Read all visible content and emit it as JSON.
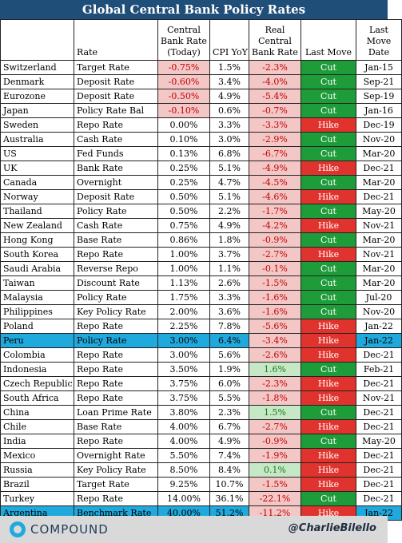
{
  "title": "Global Central Bank Policy Rates",
  "headers": {
    "country": "",
    "rate": "Rate",
    "central": "Central Bank Rate (Today)",
    "cpi": "CPI YoY",
    "real": "Real Central Bank Rate",
    "last": "Last Move",
    "date": "Last Move Date"
  },
  "rows": [
    {
      "country": "Switzerland",
      "rate": "Target Rate",
      "cb": "-0.75%",
      "cpi": "1.5%",
      "real": "-2.3%",
      "move": "Cut",
      "date": "Jan-15"
    },
    {
      "country": "Denmark",
      "rate": "Deposit Rate",
      "cb": "-0.60%",
      "cpi": "3.4%",
      "real": "-4.0%",
      "move": "Cut",
      "date": "Sep-21"
    },
    {
      "country": "Eurozone",
      "rate": "Deposit Rate",
      "cb": "-0.50%",
      "cpi": "4.9%",
      "real": "-5.4%",
      "move": "Cut",
      "date": "Sep-19"
    },
    {
      "country": "Japan",
      "rate": "Policy Rate Bal",
      "cb": "-0.10%",
      "cpi": "0.6%",
      "real": "-0.7%",
      "move": "Cut",
      "date": "Jan-16"
    },
    {
      "country": "Sweden",
      "rate": "Repo Rate",
      "cb": "0.00%",
      "cpi": "3.3%",
      "real": "-3.3%",
      "move": "Hike",
      "date": "Dec-19"
    },
    {
      "country": "Australia",
      "rate": "Cash Rate",
      "cb": "0.10%",
      "cpi": "3.0%",
      "real": "-2.9%",
      "move": "Cut",
      "date": "Nov-20"
    },
    {
      "country": "US",
      "rate": "Fed Funds",
      "cb": "0.13%",
      "cpi": "6.8%",
      "real": "-6.7%",
      "move": "Cut",
      "date": "Mar-20"
    },
    {
      "country": "UK",
      "rate": "Bank Rate",
      "cb": "0.25%",
      "cpi": "5.1%",
      "real": "-4.9%",
      "move": "Hike",
      "date": "Dec-21"
    },
    {
      "country": "Canada",
      "rate": "Overnight",
      "cb": "0.25%",
      "cpi": "4.7%",
      "real": "-4.5%",
      "move": "Cut",
      "date": "Mar-20"
    },
    {
      "country": "Norway",
      "rate": "Deposit Rate",
      "cb": "0.50%",
      "cpi": "5.1%",
      "real": "-4.6%",
      "move": "Hike",
      "date": "Dec-21"
    },
    {
      "country": "Thailand",
      "rate": "Policy Rate",
      "cb": "0.50%",
      "cpi": "2.2%",
      "real": "-1.7%",
      "move": "Cut",
      "date": "May-20"
    },
    {
      "country": "New Zealand",
      "rate": "Cash Rate",
      "cb": "0.75%",
      "cpi": "4.9%",
      "real": "-4.2%",
      "move": "Hike",
      "date": "Nov-21"
    },
    {
      "country": "Hong Kong",
      "rate": "Base Rate",
      "cb": "0.86%",
      "cpi": "1.8%",
      "real": "-0.9%",
      "move": "Cut",
      "date": "Mar-20"
    },
    {
      "country": "South Korea",
      "rate": "Repo Rate",
      "cb": "1.00%",
      "cpi": "3.7%",
      "real": "-2.7%",
      "move": "Hike",
      "date": "Nov-21"
    },
    {
      "country": "Saudi Arabia",
      "rate": "Reverse Repo",
      "cb": "1.00%",
      "cpi": "1.1%",
      "real": "-0.1%",
      "move": "Cut",
      "date": "Mar-20"
    },
    {
      "country": "Taiwan",
      "rate": "Discount Rate",
      "cb": "1.13%",
      "cpi": "2.6%",
      "real": "-1.5%",
      "move": "Cut",
      "date": "Mar-20"
    },
    {
      "country": "Malaysia",
      "rate": "Policy Rate",
      "cb": "1.75%",
      "cpi": "3.3%",
      "real": "-1.6%",
      "move": "Cut",
      "date": "Jul-20"
    },
    {
      "country": "Philippines",
      "rate": "Key Policy Rate",
      "cb": "2.00%",
      "cpi": "3.6%",
      "real": "-1.6%",
      "move": "Cut",
      "date": "Nov-20"
    },
    {
      "country": "Poland",
      "rate": "Repo Rate",
      "cb": "2.25%",
      "cpi": "7.8%",
      "real": "-5.6%",
      "move": "Hike",
      "date": "Jan-22"
    },
    {
      "country": "Peru",
      "rate": "Policy Rate",
      "cb": "3.00%",
      "cpi": "6.4%",
      "real": "-3.4%",
      "move": "Hike",
      "date": "Jan-22",
      "highlight": true
    },
    {
      "country": "Colombia",
      "rate": "Repo Rate",
      "cb": "3.00%",
      "cpi": "5.6%",
      "real": "-2.6%",
      "move": "Hike",
      "date": "Dec-21"
    },
    {
      "country": "Indonesia",
      "rate": "Repo Rate",
      "cb": "3.50%",
      "cpi": "1.9%",
      "real": "1.6%",
      "move": "Cut",
      "date": "Feb-21"
    },
    {
      "country": "Czech Republic",
      "rate": "Repo Rate",
      "cb": "3.75%",
      "cpi": "6.0%",
      "real": "-2.3%",
      "move": "Hike",
      "date": "Dec-21"
    },
    {
      "country": "South Africa",
      "rate": "Repo Rate",
      "cb": "3.75%",
      "cpi": "5.5%",
      "real": "-1.8%",
      "move": "Hike",
      "date": "Nov-21"
    },
    {
      "country": "China",
      "rate": "Loan Prime Rate",
      "cb": "3.80%",
      "cpi": "2.3%",
      "real": "1.5%",
      "move": "Cut",
      "date": "Dec-21"
    },
    {
      "country": "Chile",
      "rate": "Base Rate",
      "cb": "4.00%",
      "cpi": "6.7%",
      "real": "-2.7%",
      "move": "Hike",
      "date": "Dec-21"
    },
    {
      "country": "India",
      "rate": "Repo Rate",
      "cb": "4.00%",
      "cpi": "4.9%",
      "real": "-0.9%",
      "move": "Cut",
      "date": "May-20"
    },
    {
      "country": "Mexico",
      "rate": "Overnight Rate",
      "cb": "5.50%",
      "cpi": "7.4%",
      "real": "-1.9%",
      "move": "Hike",
      "date": "Dec-21"
    },
    {
      "country": "Russia",
      "rate": "Key Policy Rate",
      "cb": "8.50%",
      "cpi": "8.4%",
      "real": "0.1%",
      "move": "Hike",
      "date": "Dec-21"
    },
    {
      "country": "Brazil",
      "rate": "Target Rate",
      "cb": "9.25%",
      "cpi": "10.7%",
      "real": "-1.5%",
      "move": "Hike",
      "date": "Dec-21"
    },
    {
      "country": "Turkey",
      "rate": "Repo Rate",
      "cb": "14.00%",
      "cpi": "36.1%",
      "real": "-22.1%",
      "move": "Cut",
      "date": "Dec-21"
    },
    {
      "country": "Argentina",
      "rate": "Benchmark Rate",
      "cb": "40.00%",
      "cpi": "51.2%",
      "real": "-11.2%",
      "move": "Hike",
      "date": "Jan-22",
      "highlight": true
    }
  ],
  "colors": {
    "cut": "#1e9c3a",
    "hike": "#e0332d",
    "highlight": "#1fa9dc",
    "title_bg": "#1f4e79"
  },
  "footer": {
    "logo_text": "COMPOUND",
    "logo_icon": "compound-logo-icon",
    "handle": "@CharlieBilello"
  }
}
